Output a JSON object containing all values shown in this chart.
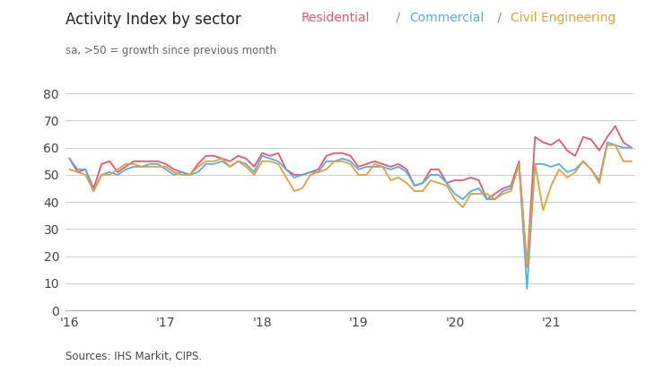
{
  "title": "Activity Index by sector",
  "subtitle": "sa, >50 = growth since previous month",
  "source": "Sources: IHS Markit, CIPS.",
  "legend_residential": "Residential",
  "legend_commercial": "Commercial",
  "legend_civil": "Civil Engineering",
  "color_residential": "#e05a6e",
  "color_commercial": "#5aace0",
  "color_civil": "#e0a040",
  "color_slash": "#888888",
  "ylim": [
    0,
    80
  ],
  "yticks": [
    0,
    10,
    20,
    30,
    40,
    50,
    60,
    70,
    80
  ],
  "xtick_labels": [
    "'16",
    "'17",
    "'18",
    "'19",
    "'20",
    "'21"
  ],
  "xtick_positions": [
    0,
    12,
    24,
    36,
    48,
    60
  ],
  "residential": [
    56,
    51,
    52,
    45,
    54,
    55,
    51,
    53,
    55,
    55,
    55,
    55,
    54,
    52,
    51,
    50,
    54,
    57,
    57,
    56,
    55,
    57,
    56,
    53,
    58,
    57,
    58,
    52,
    50,
    50,
    51,
    52,
    57,
    58,
    58,
    57,
    53,
    54,
    55,
    54,
    53,
    54,
    52,
    46,
    47,
    52,
    52,
    47,
    48,
    48,
    49,
    48,
    41,
    43,
    45,
    46,
    55,
    16,
    64,
    62,
    61,
    63,
    59,
    57,
    64,
    63,
    59,
    64,
    68,
    62,
    60
  ],
  "commercial": [
    56,
    52,
    52,
    44,
    50,
    51,
    50,
    52,
    53,
    53,
    54,
    54,
    52,
    50,
    51,
    50,
    51,
    54,
    54,
    55,
    53,
    55,
    54,
    51,
    57,
    56,
    55,
    52,
    49,
    50,
    51,
    51,
    55,
    55,
    56,
    55,
    52,
    53,
    53,
    53,
    52,
    53,
    51,
    46,
    47,
    50,
    50,
    47,
    43,
    41,
    44,
    45,
    41,
    41,
    44,
    45,
    54,
    8,
    54,
    54,
    53,
    54,
    51,
    52,
    55,
    52,
    48,
    62,
    61,
    60,
    60
  ],
  "civil": [
    52,
    51,
    50,
    44,
    50,
    50,
    52,
    54,
    54,
    53,
    53,
    53,
    53,
    51,
    50,
    50,
    53,
    55,
    55,
    56,
    53,
    55,
    53,
    50,
    55,
    55,
    54,
    49,
    44,
    45,
    50,
    51,
    52,
    55,
    55,
    54,
    50,
    50,
    54,
    53,
    48,
    49,
    47,
    44,
    44,
    48,
    47,
    46,
    41,
    38,
    43,
    43,
    43,
    41,
    43,
    44,
    54,
    16,
    54,
    37,
    46,
    52,
    49,
    51,
    55,
    52,
    47,
    61,
    61,
    55,
    55
  ]
}
